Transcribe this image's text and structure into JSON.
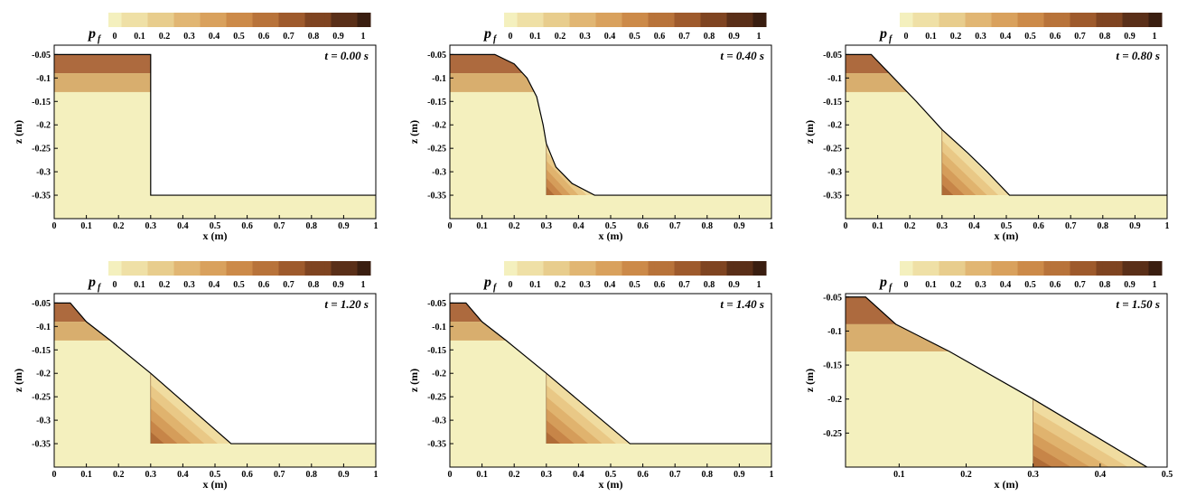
{
  "colorbar": {
    "label": "p",
    "label_subscript": "f",
    "ticks": [
      "0",
      "0.1",
      "0.2",
      "0.3",
      "0.4",
      "0.5",
      "0.6",
      "0.7",
      "0.8",
      "0.9",
      "1"
    ],
    "colors": [
      "#f4f0be",
      "#efe0a6",
      "#e8cd8d",
      "#e1b673",
      "#d9a15d",
      "#cc8a49",
      "#b8733a",
      "#9e5a2c",
      "#7f4421",
      "#5a2f18",
      "#3a1e10"
    ]
  },
  "chart_data": [
    {
      "type": "heatmap",
      "title": "t = 0.00 s",
      "xlabel": "x (m)",
      "ylabel": "z (m)",
      "xlim": [
        0,
        1
      ],
      "ylim": [
        -0.4,
        -0.03
      ],
      "xticks": [
        "0",
        "0.1",
        "0.2",
        "0.3",
        "0.4",
        "0.5",
        "0.6",
        "0.7",
        "0.8",
        "0.9",
        "1"
      ],
      "yticks": [
        "-0.05",
        "-0.1",
        "-0.15",
        "-0.2",
        "-0.25",
        "-0.3",
        "-0.35"
      ],
      "free_surface": [
        [
          0,
          -0.05
        ],
        [
          0.3,
          -0.05
        ],
        [
          0.3,
          -0.35
        ],
        [
          1,
          -0.35
        ]
      ],
      "layer_interfaces": [
        -0.09,
        -0.13
      ],
      "wedge": null
    },
    {
      "type": "heatmap",
      "title": "t = 0.40 s",
      "xlabel": "x (m)",
      "ylabel": "z (m)",
      "xlim": [
        0,
        1
      ],
      "ylim": [
        -0.4,
        -0.03
      ],
      "xticks": [
        "0",
        "0.1",
        "0.2",
        "0.3",
        "0.4",
        "0.5",
        "0.6",
        "0.7",
        "0.8",
        "0.9",
        "1"
      ],
      "yticks": [
        "-0.05",
        "-0.1",
        "-0.15",
        "-0.2",
        "-0.25",
        "-0.3",
        "-0.35"
      ],
      "free_surface": [
        [
          0,
          -0.05
        ],
        [
          0.14,
          -0.05
        ],
        [
          0.2,
          -0.07
        ],
        [
          0.24,
          -0.1
        ],
        [
          0.27,
          -0.14
        ],
        [
          0.29,
          -0.2
        ],
        [
          0.3,
          -0.24
        ],
        [
          0.33,
          -0.29
        ],
        [
          0.38,
          -0.325
        ],
        [
          0.45,
          -0.35
        ],
        [
          1,
          -0.35
        ]
      ],
      "layer_interfaces": [
        -0.09,
        -0.13
      ],
      "wedge": {
        "x0": 0.3,
        "z_top": -0.24,
        "x_end": 0.45,
        "z_bed": -0.35
      }
    },
    {
      "type": "heatmap",
      "title": "t = 0.80 s",
      "xlabel": "x (m)",
      "ylabel": "z (m)",
      "xlim": [
        0,
        1
      ],
      "ylim": [
        -0.4,
        -0.03
      ],
      "xticks": [
        "0",
        "0.1",
        "0.2",
        "0.3",
        "0.4",
        "0.5",
        "0.6",
        "0.7",
        "0.8",
        "0.9",
        "1"
      ],
      "yticks": [
        "-0.05",
        "-0.1",
        "-0.15",
        "-0.2",
        "-0.25",
        "-0.3",
        "-0.35"
      ],
      "free_surface": [
        [
          0,
          -0.05
        ],
        [
          0.08,
          -0.05
        ],
        [
          0.15,
          -0.1
        ],
        [
          0.22,
          -0.15
        ],
        [
          0.3,
          -0.21
        ],
        [
          0.38,
          -0.26
        ],
        [
          0.44,
          -0.3
        ],
        [
          0.51,
          -0.35
        ],
        [
          1,
          -0.35
        ]
      ],
      "layer_interfaces": [
        -0.09,
        -0.13
      ],
      "wedge": {
        "x0": 0.3,
        "z_top": -0.21,
        "x_end": 0.51,
        "z_bed": -0.35
      }
    },
    {
      "type": "heatmap",
      "title": "t = 1.20 s",
      "xlabel": "x (m)",
      "ylabel": "z (m)",
      "xlim": [
        0,
        1
      ],
      "ylim": [
        -0.4,
        -0.03
      ],
      "xticks": [
        "0",
        "0.1",
        "0.2",
        "0.3",
        "0.4",
        "0.5",
        "0.6",
        "0.7",
        "0.8",
        "0.9",
        "1"
      ],
      "yticks": [
        "-0.05",
        "-0.1",
        "-0.15",
        "-0.2",
        "-0.25",
        "-0.3",
        "-0.35"
      ],
      "free_surface": [
        [
          0,
          -0.05
        ],
        [
          0.05,
          -0.05
        ],
        [
          0.1,
          -0.09
        ],
        [
          0.175,
          -0.13
        ],
        [
          0.3,
          -0.2
        ],
        [
          0.55,
          -0.35
        ],
        [
          1,
          -0.35
        ]
      ],
      "layer_interfaces": [
        -0.09,
        -0.13
      ],
      "wedge": {
        "x0": 0.3,
        "z_top": -0.2,
        "x_end": 0.55,
        "z_bed": -0.35
      }
    },
    {
      "type": "heatmap",
      "title": "t = 1.40 s",
      "xlabel": "x (m)",
      "ylabel": "z (m)",
      "xlim": [
        0,
        1
      ],
      "ylim": [
        -0.4,
        -0.03
      ],
      "xticks": [
        "0",
        "0.1",
        "0.2",
        "0.3",
        "0.4",
        "0.5",
        "0.6",
        "0.7",
        "0.8",
        "0.9",
        "1"
      ],
      "yticks": [
        "-0.05",
        "-0.1",
        "-0.15",
        "-0.2",
        "-0.25",
        "-0.3",
        "-0.35"
      ],
      "free_surface": [
        [
          0,
          -0.05
        ],
        [
          0.05,
          -0.05
        ],
        [
          0.1,
          -0.09
        ],
        [
          0.175,
          -0.13
        ],
        [
          0.3,
          -0.2
        ],
        [
          0.56,
          -0.35
        ],
        [
          1,
          -0.35
        ]
      ],
      "layer_interfaces": [
        -0.09,
        -0.13
      ],
      "wedge": {
        "x0": 0.3,
        "z_top": -0.2,
        "x_end": 0.56,
        "z_bed": -0.35
      }
    },
    {
      "type": "heatmap",
      "title": "t = 1.50 s",
      "xlabel": "x (m)",
      "ylabel": "z (m)",
      "xlim": [
        0.02,
        0.5
      ],
      "ylim": [
        -0.3,
        -0.045
      ],
      "xticks": [
        "0.1",
        "0.2",
        "0.3",
        "0.4",
        "0.5"
      ],
      "yticks": [
        "-0.05",
        "-0.1",
        "-0.15",
        "-0.2",
        "-0.25"
      ],
      "free_surface": [
        [
          0.02,
          -0.05
        ],
        [
          0.05,
          -0.05
        ],
        [
          0.095,
          -0.09
        ],
        [
          0.175,
          -0.13
        ],
        [
          0.3,
          -0.2
        ],
        [
          0.47,
          -0.3
        ]
      ],
      "layer_interfaces": [
        -0.09,
        -0.13
      ],
      "wedge": {
        "x0": 0.3,
        "z_top": -0.2,
        "x_end": 0.47,
        "z_bed": -0.3
      }
    }
  ]
}
